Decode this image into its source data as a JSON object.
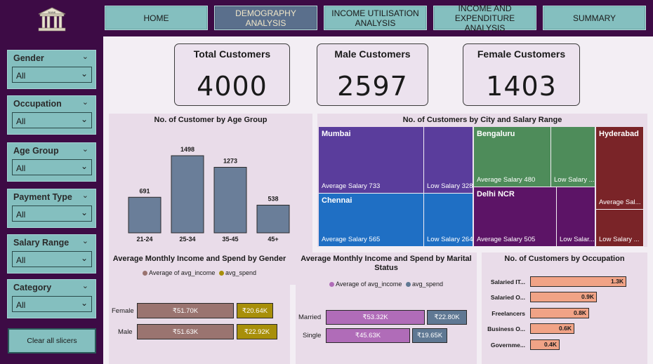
{
  "logo": {
    "icon": "bank-icon",
    "text": "BANK"
  },
  "nav": [
    {
      "label": "HOME"
    },
    {
      "label": "DEMOGRAPHY ANALYSIS"
    },
    {
      "label": "INCOME UTILISATION ANALYSIS"
    },
    {
      "label": "INCOME AND EXPENDITURE ANALYSIS"
    },
    {
      "label": "SUMMARY"
    }
  ],
  "slicers": [
    {
      "label": "Gender",
      "value": "All"
    },
    {
      "label": "Occupation",
      "value": "All"
    },
    {
      "label": "Age Group",
      "value": "All"
    },
    {
      "label": "Payment Type",
      "value": "All"
    },
    {
      "label": "Salary Range",
      "value": "All"
    },
    {
      "label": "Category",
      "value": "All"
    }
  ],
  "clear_label": "Clear all slicers",
  "kpis": [
    {
      "title": "Total Customers",
      "value": "4000"
    },
    {
      "title": "Male Customers",
      "value": "2597"
    },
    {
      "title": "Female Customers",
      "value": "1403"
    }
  ],
  "age_chart": {
    "title": "No. of Customer by Age Group",
    "color": "#6a7e99",
    "chart_data": {
      "type": "bar",
      "categories": [
        "21-24",
        "25-34",
        "35-45",
        "45+"
      ],
      "values": [
        691,
        1498,
        1273,
        538
      ]
    }
  },
  "treemap": {
    "title": "No. of Customers by City and Salary Range",
    "tiles": [
      {
        "name": "Mumbai",
        "sub": "Average Salary 733",
        "color": "#5a3d9c"
      },
      {
        "name": "",
        "sub": "Low Salary 328",
        "color": "#5a3d9c"
      },
      {
        "name": "Chennai",
        "sub": "Average Salary 565",
        "color": "#1f6fc4"
      },
      {
        "name": "",
        "sub": "Low Salary 264",
        "color": "#1f6fc4"
      },
      {
        "name": "Bengaluru",
        "sub": "Average Salary 480",
        "color": "#4e8c5a"
      },
      {
        "name": "",
        "sub": "Low Salary ...",
        "color": "#4e8c5a"
      },
      {
        "name": "Delhi NCR",
        "sub": "Average Salary 505",
        "color": "#5c1466"
      },
      {
        "name": "",
        "sub": "Low Salar...",
        "color": "#5c1466"
      },
      {
        "name": "Hyderabad",
        "sub": "Average Sal...",
        "color": "#7a2428"
      },
      {
        "name": "",
        "sub": "Low Salary ...",
        "color": "#7a2428"
      }
    ]
  },
  "gender_chart": {
    "title": "Average Monthly Income and Spend by Gender",
    "legend": [
      {
        "name": "Average of avg_income",
        "color": "#9a7470"
      },
      {
        "name": "avg_spend",
        "color": "#a88f0a"
      }
    ],
    "chart_data": {
      "type": "bar",
      "categories": [
        "Female",
        "Male"
      ],
      "series": [
        {
          "name": "Average of avg_income",
          "values": [
            51700,
            51630
          ],
          "labels": [
            "₹51.70K",
            "₹51.63K"
          ]
        },
        {
          "name": "avg_spend",
          "values": [
            20640,
            22920
          ],
          "labels": [
            "₹20.64K",
            "₹22.92K"
          ]
        }
      ]
    }
  },
  "marital_chart": {
    "title": "Average Monthly Income and Spend by Marital Status",
    "legend": [
      {
        "name": "Average of avg_income",
        "color": "#b06cb8"
      },
      {
        "name": "avg_spend",
        "color": "#5f7893"
      }
    ],
    "chart_data": {
      "type": "bar",
      "categories": [
        "Married",
        "Single"
      ],
      "series": [
        {
          "name": "Average of avg_income",
          "values": [
            53320,
            45630
          ],
          "labels": [
            "₹53.32K",
            "₹45.63K"
          ]
        },
        {
          "name": "avg_spend",
          "values": [
            22800,
            19650
          ],
          "labels": [
            "₹22.80K",
            "₹19.65K"
          ]
        }
      ]
    }
  },
  "occupation_chart": {
    "title": "No. of Customers by Occupation",
    "chart_data": {
      "type": "bar",
      "categories": [
        "Salaried IT...",
        "Salaried O...",
        "Freelancers",
        "Business O...",
        "Governme..."
      ],
      "values": [
        1300,
        900,
        800,
        600,
        400
      ],
      "labels": [
        "1.3K",
        "0.9K",
        "0.8K",
        "0.6K",
        "0.4K"
      ]
    }
  }
}
